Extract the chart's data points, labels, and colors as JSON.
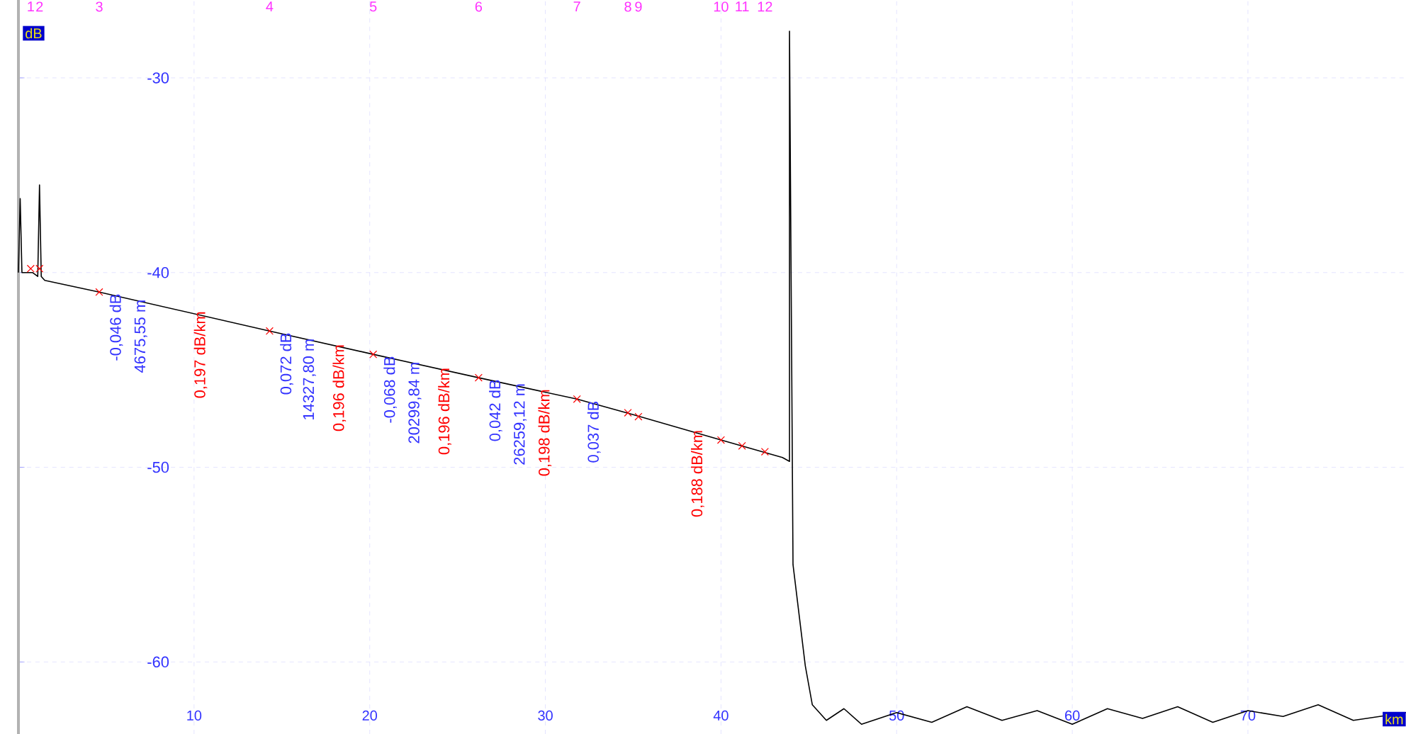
{
  "chart_data": {
    "type": "line",
    "xlabel": "km",
    "ylabel": "dB",
    "xlim": [
      0,
      79
    ],
    "ylim": [
      -63.7,
      -26
    ],
    "xticks": [
      10,
      20,
      30,
      40,
      50,
      60,
      70
    ],
    "yticks": [
      -30,
      -40,
      -50,
      -60
    ],
    "grid": true,
    "marker": "none",
    "line_style": "solid",
    "series": [
      {
        "color": "#000000",
        "x": [
          0,
          0.1,
          0.2,
          0.8,
          1.1,
          1.2,
          1.3,
          1.5,
          4.6,
          14.3,
          20.2,
          26.2,
          31.8,
          35.0,
          40.0,
          43.5,
          43.9,
          43.9,
          44.1,
          44.8,
          45.2,
          46,
          47,
          48,
          50,
          52,
          54,
          56,
          58,
          60,
          62,
          64,
          66,
          68,
          70,
          72,
          74,
          76,
          79
        ],
        "values": [
          -40,
          -36.2,
          -40,
          -40,
          -40.2,
          -35.5,
          -40.2,
          -40.4,
          -41.0,
          -43.0,
          -44.2,
          -45.4,
          -46.5,
          -47.3,
          -48.6,
          -49.5,
          -49.7,
          -27.6,
          -55,
          -60.2,
          -62.2,
          -63.0,
          -62.4,
          -63.2,
          -62.6,
          -63.1,
          -62.3,
          -63.0,
          -62.5,
          -63.2,
          -62.4,
          -62.9,
          -62.3,
          -63.1,
          -62.5,
          -62.8,
          -62.2,
          -63.0,
          -62.6
        ]
      },
      {
        "type": "scatter",
        "color": "#ff0000",
        "marker": "cross",
        "x": [
          0.7,
          1.2,
          4.6,
          14.3,
          20.2,
          26.2,
          31.8,
          34.7,
          35.3,
          40.0,
          41.2,
          42.5
        ],
        "values": [
          -39.8,
          -39.8,
          -41.0,
          -43.0,
          -44.2,
          -45.4,
          -46.5,
          -47.2,
          -47.4,
          -48.6,
          -48.9,
          -49.2
        ]
      }
    ],
    "annotations": [
      "1",
      "2",
      "3",
      "4",
      "5",
      "6",
      "7",
      "8",
      "9",
      "10",
      "11",
      "12",
      {
        "text": "-0,046 dB",
        "x": 4.6,
        "y": -41.0
      },
      {
        "text": "4675,55 m",
        "x": 6.0,
        "y": -41.3
      },
      {
        "text": "0,197 dB/km",
        "x": 9.4,
        "y": -41.9
      },
      {
        "text": "0,072 dB",
        "x": 14.3,
        "y": -43.0
      },
      {
        "text": "14327,80 m",
        "x": 15.6,
        "y": -43.3
      },
      {
        "text": "0,196 dB/km",
        "x": 17.3,
        "y": -43.6
      },
      {
        "text": "-0,068 dB",
        "x": 20.2,
        "y": -44.2
      },
      {
        "text": "20299,84 m",
        "x": 21.6,
        "y": -44.5
      },
      {
        "text": "0,196 dB/km",
        "x": 23.3,
        "y": -44.8
      },
      {
        "text": "0,042 dB",
        "x": 26.2,
        "y": -45.4
      },
      {
        "text": "26259,12 m",
        "x": 27.6,
        "y": -45.6
      },
      {
        "text": "0,198 dB/km",
        "x": 29.0,
        "y": -45.9
      },
      {
        "text": "0,037 dB",
        "x": 31.8,
        "y": -46.5
      },
      {
        "text": "0,188 dB/km",
        "x": 37.7,
        "y": -48.0
      }
    ]
  }
}
